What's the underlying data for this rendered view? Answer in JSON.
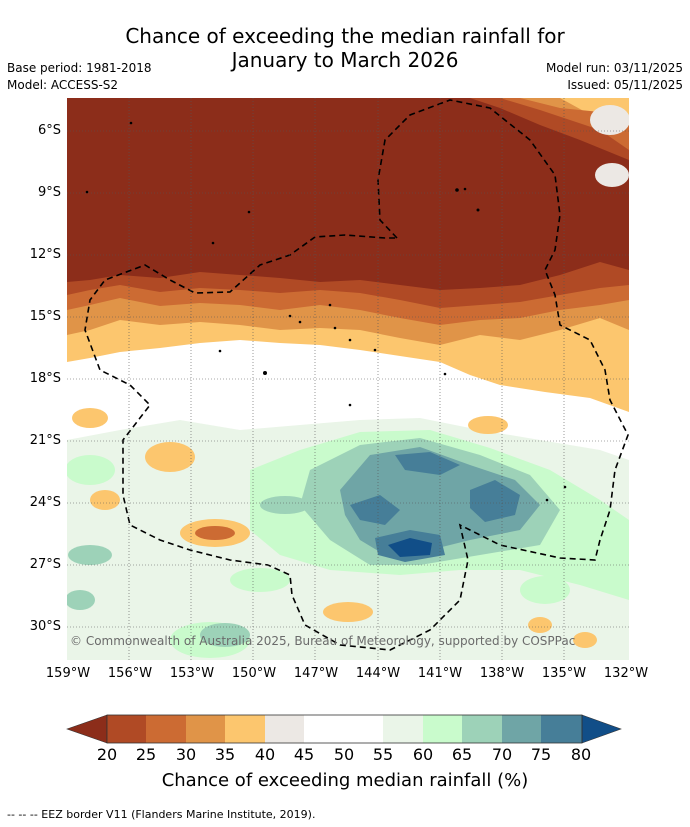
{
  "title_line1": "Chance of exceeding the median rainfall for",
  "title_line2": "January to March 2026",
  "base_period": "Base period: 1981-2018",
  "model": "Model: ACCESS-S2",
  "model_run": "Model run: 03/11/2025",
  "issued": "Issued: 05/11/2025",
  "lat_labels": [
    "6°S",
    "9°S",
    "12°S",
    "15°S",
    "18°S",
    "21°S",
    "24°S",
    "27°S",
    "30°S"
  ],
  "lon_labels": [
    "159°W",
    "156°W",
    "153°W",
    "150°W",
    "147°W",
    "144°W",
    "141°W",
    "138°W",
    "135°W",
    "132°W"
  ],
  "copyright": "© Commonwealth of Australia 2025, Bureau of Meteorology, supported by COSPPac",
  "colorbar": {
    "ticks": [
      "20",
      "25",
      "30",
      "35",
      "40",
      "45",
      "50",
      "55",
      "60",
      "65",
      "70",
      "75",
      "80"
    ],
    "label": "Chance of exceeding median rainfall (%)",
    "colors": [
      "#8c2d1a",
      "#b04a25",
      "#cc6b33",
      "#e09448",
      "#fcc66e",
      "#ece8e4",
      "#ffffff",
      "#ffffff",
      "#eaf5e8",
      "#c9fbcc",
      "#9dd2b8",
      "#6fa5a6",
      "#467e98",
      "#114e88"
    ]
  },
  "footnote": "--  --  -- EEZ border V11 (Flanders Marine Institute, 2019)."
}
